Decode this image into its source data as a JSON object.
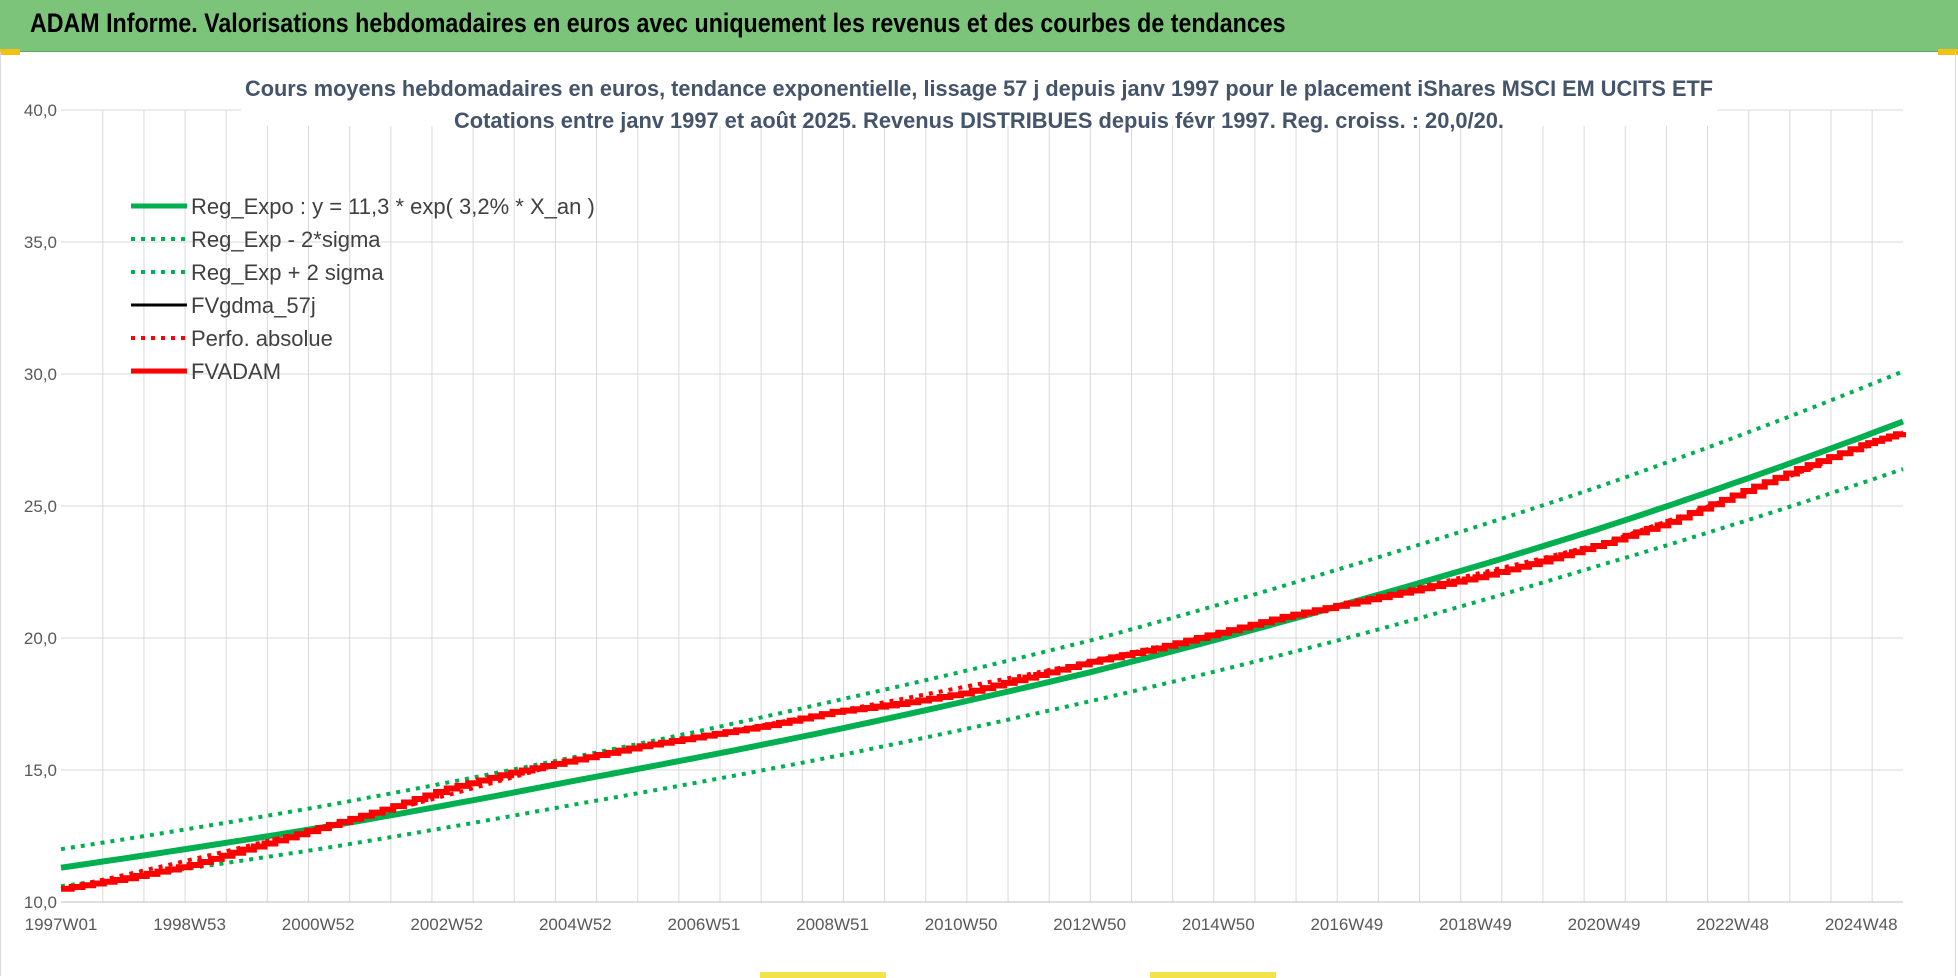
{
  "banner": {
    "title": "ADAM Informe. Valorisations hebdomadaires en euros avec uniquement les revenus et des courbes de tendances"
  },
  "colors": {
    "banner_bg": "#7dc47b",
    "green": "#00b050",
    "red": "#ff0000",
    "black": "#000000",
    "title": "#44546a",
    "accent_yellow": "#f3c014"
  },
  "chart_data": {
    "type": "line",
    "title": [
      "Cours moyens hebdomadaires en euros, tendance exponentielle, lissage 57 j depuis janv 1997 pour le placement iShares MSCI EM UCITS ETF",
      "Cotations entre janv 1997 et août 2025.  Revenus DISTRIBUES depuis févr 1997.  Reg. croiss. : 20,0/20."
    ],
    "xlabel": "",
    "ylabel": "",
    "ylim": [
      10,
      40
    ],
    "xlim": [
      1997.0,
      2025.65
    ],
    "y_ticks": [
      "10,0",
      "15,0",
      "20,0",
      "25,0",
      "30,0",
      "35,0",
      "40,0"
    ],
    "x_ticks": [
      {
        "label": "1997W01",
        "x": 1997.0
      },
      {
        "label": "1998W53",
        "x": 1999.0
      },
      {
        "label": "2000W52",
        "x": 2001.0
      },
      {
        "label": "2002W52",
        "x": 2003.0
      },
      {
        "label": "2004W52",
        "x": 2005.0
      },
      {
        "label": "2006W51",
        "x": 2007.0
      },
      {
        "label": "2008W51",
        "x": 2009.0
      },
      {
        "label": "2010W50",
        "x": 2011.0
      },
      {
        "label": "2012W50",
        "x": 2013.0
      },
      {
        "label": "2014W50",
        "x": 2015.0
      },
      {
        "label": "2016W49",
        "x": 2017.0
      },
      {
        "label": "2018W49",
        "x": 2019.0
      },
      {
        "label": "2020W49",
        "x": 2021.0
      },
      {
        "label": "2022W48",
        "x": 2023.0
      },
      {
        "label": "2024W48",
        "x": 2025.0
      }
    ],
    "grid": true,
    "legend_position": "top-left",
    "series": [
      {
        "name": "Reg_Expo : y = 11,3 * exp( 3,2% *  X_an )",
        "style": "solid-thick",
        "color": "#00b050",
        "x": [
          1997.0,
          2001.0,
          2005.0,
          2009.0,
          2013.0,
          2017.0,
          2021.0,
          2025.65
        ],
        "y": [
          11.3,
          12.8,
          14.6,
          16.5,
          18.7,
          21.3,
          24.2,
          28.2
        ]
      },
      {
        "name": "Reg_Exp - 2*sigma",
        "style": "dotted",
        "color": "#00b050",
        "x": [
          1997.0,
          2001.0,
          2005.0,
          2009.0,
          2013.0,
          2017.0,
          2021.0,
          2025.65
        ],
        "y": [
          10.6,
          12.0,
          13.7,
          15.5,
          17.6,
          20.0,
          22.8,
          26.4
        ]
      },
      {
        "name": "Reg_Exp + 2 sigma",
        "style": "dotted",
        "color": "#00b050",
        "x": [
          1997.0,
          2001.0,
          2005.0,
          2009.0,
          2013.0,
          2017.0,
          2021.0,
          2025.65
        ],
        "y": [
          12.0,
          13.6,
          15.5,
          17.6,
          19.9,
          22.7,
          25.8,
          30.1
        ]
      },
      {
        "name": "FVgdma_57j",
        "style": "solid",
        "color": "#000000",
        "x": [
          1997.0,
          1998.0,
          1999.0,
          2000.0,
          2001.0,
          2002.0,
          2003.0,
          2004.0,
          2005.0,
          2006.0,
          2007.0,
          2008.0,
          2009.0,
          2010.0,
          2011.0,
          2012.0,
          2013.0,
          2014.0,
          2015.0,
          2016.0,
          2017.0,
          2018.0,
          2019.0,
          2020.0,
          2021.0,
          2022.0,
          2023.0,
          2024.0,
          2025.0,
          2025.65
        ],
        "y": [
          10.5,
          10.9,
          11.4,
          12.1,
          12.8,
          13.5,
          14.3,
          14.9,
          15.4,
          15.9,
          16.3,
          16.7,
          17.2,
          17.5,
          17.9,
          18.5,
          19.1,
          19.6,
          20.2,
          20.8,
          21.3,
          21.8,
          22.3,
          22.9,
          23.6,
          24.4,
          25.4,
          26.4,
          27.3,
          27.8
        ]
      },
      {
        "name": "Perfo. absolue",
        "style": "dotted",
        "color": "#ff0000",
        "x": [
          1997.0,
          2001.0,
          2005.0,
          2009.0,
          2013.0,
          2017.0,
          2021.0,
          2025.65
        ],
        "y": [
          10.5,
          12.8,
          15.4,
          17.2,
          19.1,
          21.3,
          23.6,
          27.8
        ]
      },
      {
        "name": "FVADAM",
        "style": "solid-thick",
        "color": "#ff0000",
        "x": [
          1997.0,
          1998.0,
          1999.0,
          2000.0,
          2001.0,
          2002.0,
          2003.0,
          2004.0,
          2005.0,
          2006.0,
          2007.0,
          2008.0,
          2009.0,
          2010.0,
          2011.0,
          2012.0,
          2013.0,
          2014.0,
          2015.0,
          2016.0,
          2017.0,
          2018.0,
          2019.0,
          2020.0,
          2021.0,
          2022.0,
          2023.0,
          2024.0,
          2025.0,
          2025.65
        ],
        "y": [
          10.5,
          10.9,
          11.4,
          12.1,
          12.8,
          13.5,
          14.3,
          14.9,
          15.4,
          15.9,
          16.3,
          16.7,
          17.2,
          17.5,
          17.9,
          18.5,
          19.1,
          19.6,
          20.2,
          20.8,
          21.3,
          21.8,
          22.3,
          22.9,
          23.6,
          24.4,
          25.4,
          26.4,
          27.3,
          27.8
        ]
      }
    ]
  }
}
